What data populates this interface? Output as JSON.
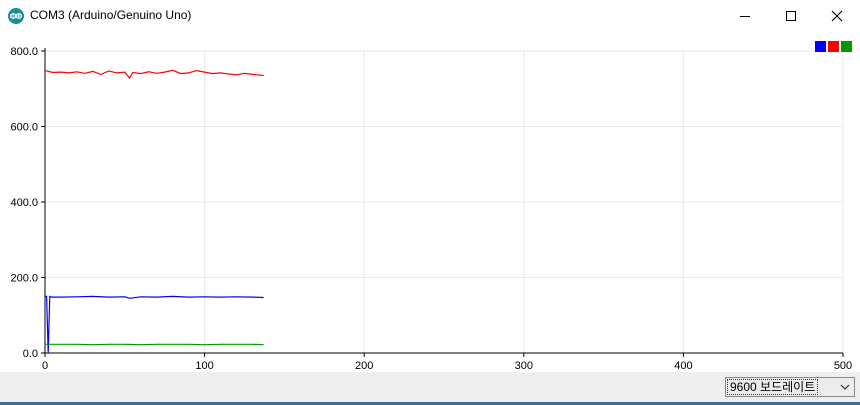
{
  "window": {
    "title": "COM3 (Arduino/Genuino Uno)",
    "app_icon": "arduino-logo-icon",
    "controls": [
      "minimize-icon",
      "maximize-icon",
      "close-icon"
    ]
  },
  "baud_select": {
    "value": "9600 보드레이트",
    "icon": "chevron-down-icon"
  },
  "colors": {
    "series_1": "#0000ff",
    "series_2": "#ff0000",
    "series_3": "#009900",
    "grid": "#e8e8e8",
    "axis": "#000000",
    "bottom_bar": "#efefef",
    "window_edge": "#3d6e98"
  },
  "chart_data": {
    "type": "line",
    "title": "",
    "xlabel": "",
    "ylabel": "",
    "xlim": [
      0,
      500
    ],
    "ylim": [
      0,
      800
    ],
    "x_ticks": [
      "0",
      "100",
      "200",
      "300",
      "400",
      "500"
    ],
    "y_ticks": [
      "0.0",
      "200.0",
      "400.0",
      "600.0",
      "800.0"
    ],
    "grid": true,
    "legend_position": "top-right",
    "series": [
      {
        "color": "#0000ff",
        "x": [
          0,
          1,
          2,
          3,
          4,
          10,
          20,
          30,
          40,
          50,
          53,
          60,
          70,
          80,
          90,
          100,
          110,
          120,
          130,
          137
        ],
        "y": [
          150,
          150,
          0,
          150,
          148,
          148,
          149,
          150,
          148,
          149,
          145,
          149,
          148,
          150,
          148,
          149,
          148,
          149,
          148,
          147
        ]
      },
      {
        "color": "#ff0000",
        "x": [
          0,
          5,
          10,
          15,
          20,
          25,
          30,
          35,
          40,
          45,
          50,
          53,
          55,
          60,
          65,
          70,
          75,
          80,
          85,
          90,
          95,
          100,
          105,
          110,
          115,
          120,
          125,
          130,
          137
        ],
        "y": [
          748,
          743,
          744,
          742,
          745,
          741,
          746,
          738,
          747,
          742,
          744,
          728,
          743,
          740,
          745,
          741,
          744,
          749,
          740,
          742,
          748,
          744,
          740,
          742,
          739,
          737,
          741,
          738,
          735
        ]
      },
      {
        "color": "#009900",
        "x": [
          0,
          10,
          20,
          30,
          40,
          50,
          60,
          70,
          80,
          90,
          100,
          110,
          120,
          130,
          137
        ],
        "y": [
          23,
          23,
          23,
          22,
          23,
          23,
          22,
          23,
          23,
          23,
          22,
          23,
          23,
          23,
          22
        ]
      }
    ]
  }
}
